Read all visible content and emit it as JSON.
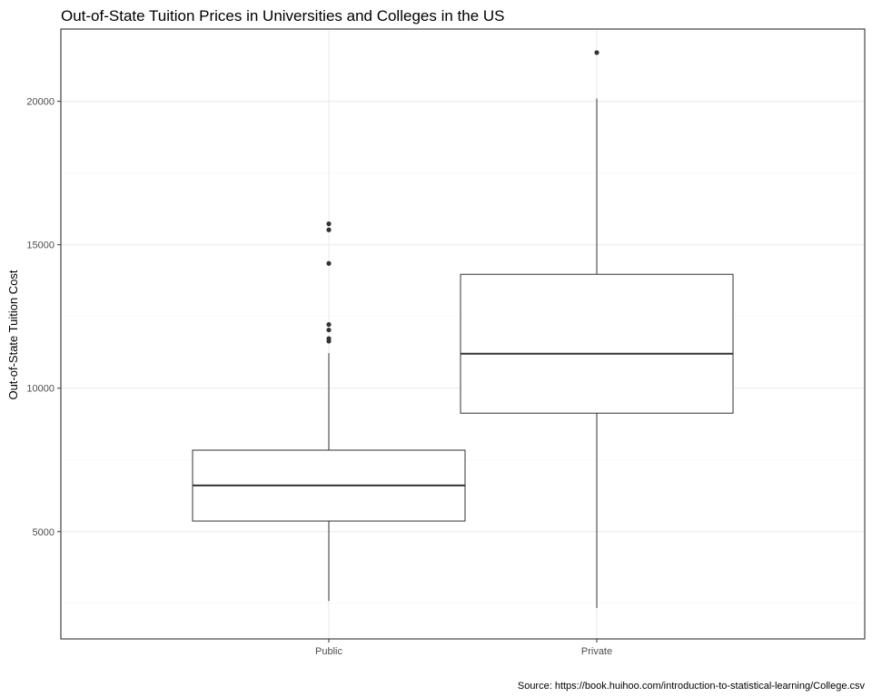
{
  "chart_data": {
    "type": "boxplot",
    "title": "Out-of-State Tuition Prices in Universities and Colleges in the US",
    "xlabel": "",
    "ylabel": "Out-of-State Tuition Cost",
    "caption": "Source: https://book.huihoo.com/introduction-to-statistical-learning/College.csv",
    "ylim": [
      1260,
      22520
    ],
    "yticks": [
      5000,
      10000,
      15000,
      20000
    ],
    "ytick_labels": [
      "5000",
      "10000",
      "15000",
      "20000"
    ],
    "grid": true,
    "categories": [
      "Public",
      "Private"
    ],
    "boxes": [
      {
        "category": "Public",
        "whisker_low": 2580,
        "q1": 5370,
        "median": 6610,
        "q3": 7840,
        "whisker_high": 11220,
        "outliers": [
          11640,
          11730,
          12030,
          12220,
          14350,
          15520,
          15730
        ]
      },
      {
        "category": "Private",
        "whisker_low": 2340,
        "q1": 9130,
        "median": 11200,
        "q3": 13970,
        "whisker_high": 20100,
        "outliers": [
          21700
        ]
      }
    ]
  },
  "colors": {
    "background": "#ffffff",
    "panel_border": "#333333",
    "grid_major": "#ebebeb",
    "grid_minor": "#f5f5f5",
    "box_line": "#333333",
    "outlier": "#333333",
    "tick_text": "#4d4d4d"
  }
}
